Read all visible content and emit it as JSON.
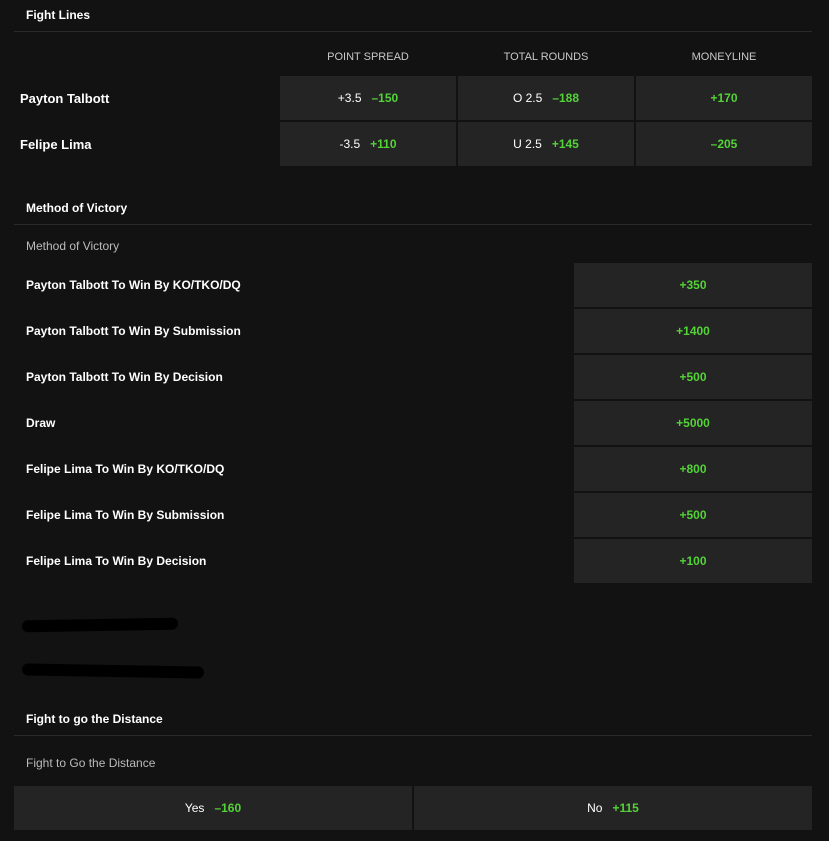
{
  "fight_lines": {
    "title": "Fight Lines",
    "headers": [
      "POINT SPREAD",
      "TOTAL ROUNDS",
      "MONEYLINE"
    ],
    "rows": [
      {
        "name": "Payton Talbott",
        "spread": "+3.5",
        "spread_odds": "–150",
        "total": "O 2.5",
        "total_odds": "–188",
        "moneyline": "+170"
      },
      {
        "name": "Felipe Lima",
        "spread": "-3.5",
        "spread_odds": "+110",
        "total": "U 2.5",
        "total_odds": "+145",
        "moneyline": "–205"
      }
    ]
  },
  "method_of_victory": {
    "title": "Method of Victory",
    "subtitle": "Method of Victory",
    "rows": [
      {
        "label": "Payton Talbott To Win By KO/TKO/DQ",
        "odds": "+350"
      },
      {
        "label": "Payton Talbott To Win By Submission",
        "odds": "+1400"
      },
      {
        "label": "Payton Talbott To Win By Decision",
        "odds": "+500"
      },
      {
        "label": "Draw",
        "odds": "+5000"
      },
      {
        "label": "Felipe Lima To Win By KO/TKO/DQ",
        "odds": "+800"
      },
      {
        "label": "Felipe Lima To Win By Submission",
        "odds": "+500"
      },
      {
        "label": "Felipe Lima To Win By Decision",
        "odds": "+100"
      }
    ]
  },
  "distance": {
    "title": "Fight to go the Distance",
    "subtitle": "Fight to Go the Distance",
    "options": [
      {
        "label": "Yes",
        "odds": "–160"
      },
      {
        "label": "No",
        "odds": "+115"
      }
    ]
  },
  "colors": {
    "background": "#121212",
    "cell": "#242424",
    "odds_green": "#53d337"
  }
}
